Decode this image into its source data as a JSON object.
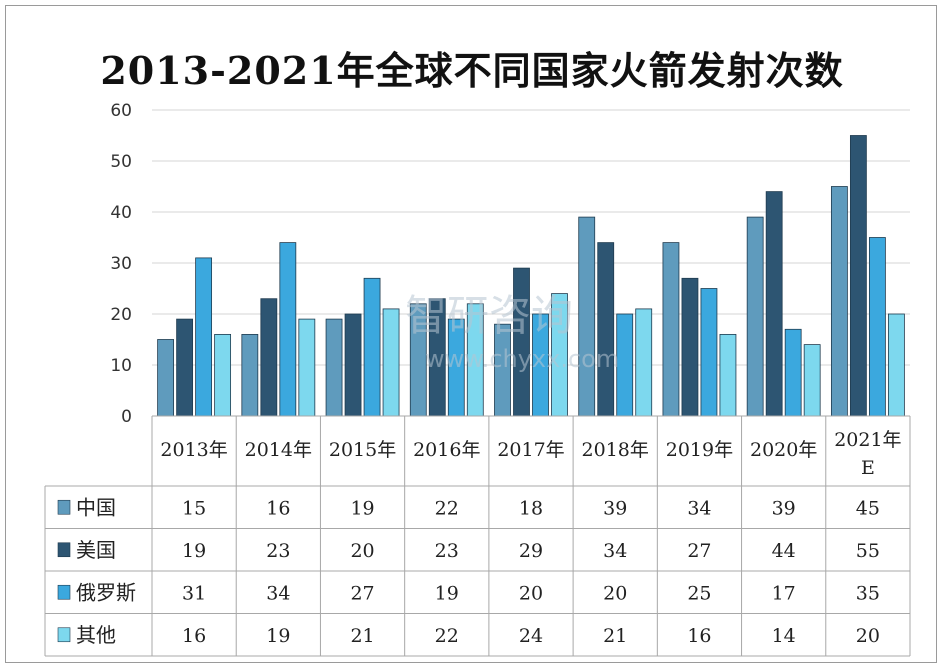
{
  "watermark": {
    "brand": "智研咨询",
    "url": "www.chyxx.com"
  },
  "chart_data": {
    "type": "bar",
    "title": "2013-2021年全球不同国家火箭发射次数",
    "categories": [
      "2013年",
      "2014年",
      "2015年",
      "2016年",
      "2017年",
      "2018年",
      "2019年",
      "2020年",
      "2021年E"
    ],
    "y_ticks": [
      "0",
      "10",
      "20",
      "30",
      "40",
      "50",
      "60"
    ],
    "ylim": [
      0,
      60
    ],
    "grid": true,
    "legend": "data-table-below",
    "series": [
      {
        "name": "中国",
        "color": "#5f9bbd",
        "values": [
          15,
          16,
          19,
          22,
          18,
          39,
          34,
          39,
          45
        ]
      },
      {
        "name": "美国",
        "color": "#2d5572",
        "values": [
          19,
          23,
          20,
          23,
          29,
          34,
          27,
          44,
          55
        ]
      },
      {
        "name": "俄罗斯",
        "color": "#3ba8de",
        "values": [
          31,
          34,
          27,
          19,
          20,
          20,
          25,
          17,
          35
        ]
      },
      {
        "name": "其他",
        "color": "#7dd8ee",
        "values": [
          16,
          19,
          21,
          22,
          24,
          21,
          16,
          14,
          20
        ]
      }
    ]
  }
}
